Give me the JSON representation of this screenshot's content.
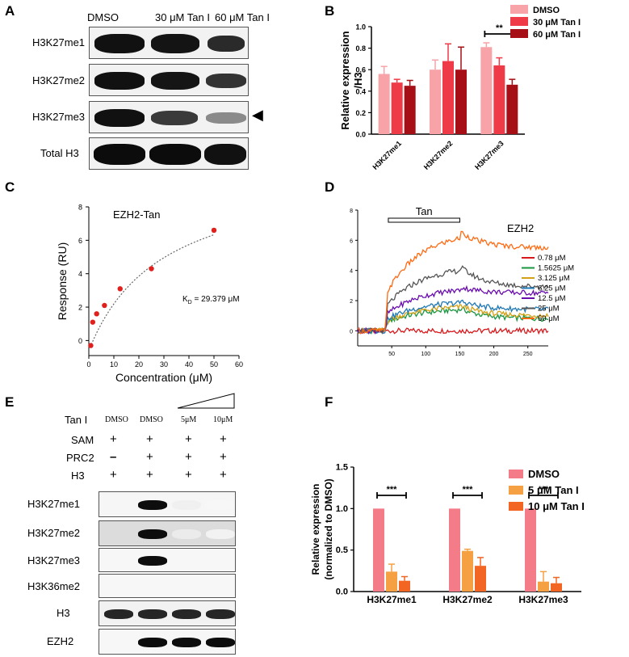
{
  "panel_labels": {
    "a": "A",
    "b": "B",
    "c": "C",
    "d": "D",
    "e": "E",
    "f": "F"
  },
  "panel_a": {
    "lanes": [
      "DMSO",
      "30 μM Tan I",
      "60 μM Tan I"
    ],
    "rows": [
      "H3K27me1",
      "H3K27me2",
      "H3K27me3",
      "Total H3"
    ],
    "arrow_glyph": "◀"
  },
  "panel_e": {
    "lanes": [
      "DMSO",
      "DMSO",
      "5μM",
      "10μM"
    ],
    "tan_label": "Tan I",
    "conditions": [
      {
        "label": "SAM",
        "marks": [
          "+",
          "+",
          "+",
          "+"
        ]
      },
      {
        "label": "PRC2",
        "marks": [
          "–",
          "+",
          "+",
          "+"
        ]
      },
      {
        "label": "H3",
        "marks": [
          "+",
          "+",
          "+",
          "+"
        ]
      }
    ],
    "rows": [
      "H3K27me1",
      "H3K27me2",
      "H3K27me3",
      "H3K36me2",
      "H3",
      "EZH2"
    ]
  },
  "chart_data": [
    {
      "id": "B",
      "type": "bar",
      "ylabel": "Relative expression /H3",
      "ylim": [
        0,
        1.0
      ],
      "yticks": [
        "0.0",
        "0.2",
        "0.4",
        "0.6",
        "0.8",
        "1.0"
      ],
      "categories": [
        "H3K27me1",
        "H3K27me2",
        "H3K27me3"
      ],
      "series": [
        {
          "name": "DMSO",
          "color": "#f7a3a8",
          "values": [
            0.56,
            0.6,
            0.81
          ],
          "err": [
            0.07,
            0.09,
            0.04
          ]
        },
        {
          "name": "30 μM Tan I",
          "color": "#ef3b47",
          "values": [
            0.48,
            0.68,
            0.64
          ],
          "err": [
            0.03,
            0.16,
            0.07
          ]
        },
        {
          "name": "60 μM Tan I",
          "color": "#a50f15",
          "values": [
            0.45,
            0.6,
            0.46
          ],
          "err": [
            0.05,
            0.21,
            0.05
          ]
        }
      ],
      "annotations": [
        {
          "text": "**",
          "category": "H3K27me3"
        }
      ],
      "legend": "top-right"
    },
    {
      "id": "C",
      "type": "scatter",
      "title": "EZH2-Tan",
      "xlabel": "Concentration (μM)",
      "ylabel": "Response (RU)",
      "xlim": [
        0,
        60
      ],
      "ylim": [
        0,
        8
      ],
      "xticks": [
        "0",
        "10",
        "20",
        "30",
        "40",
        "50",
        "60"
      ],
      "yticks": [
        "0",
        "2",
        "4",
        "6",
        "8"
      ],
      "points": [
        {
          "x": 0.78,
          "y": -0.3
        },
        {
          "x": 1.56,
          "y": 1.1
        },
        {
          "x": 3.125,
          "y": 1.6
        },
        {
          "x": 6.25,
          "y": 2.1
        },
        {
          "x": 12.5,
          "y": 3.1
        },
        {
          "x": 25,
          "y": 4.3
        },
        {
          "x": 50,
          "y": 6.6
        }
      ],
      "annotation_prefix": "K",
      "annotation_sub": "D",
      "annotation_suffix": " = 29.379 μM",
      "color": "#e0201c"
    },
    {
      "id": "D",
      "type": "line",
      "title": "EZH2",
      "bar_label": "Tan",
      "bar_range": [
        45,
        150
      ],
      "xlim": [
        0,
        280
      ],
      "ylim": [
        -1,
        8
      ],
      "xticks": [
        "50",
        "100",
        "150",
        "200",
        "250"
      ],
      "yticks": [
        "0",
        "2",
        "4",
        "6",
        "8"
      ],
      "series": [
        {
          "name": "0.78 μM",
          "color": "#d7191c",
          "plateau": 0.0,
          "final": 0.0
        },
        {
          "name": "1.5625 μM",
          "color": "#1a9641",
          "plateau": 1.5,
          "final": 0.8
        },
        {
          "name": "3.125 μM",
          "color": "#d4a017",
          "plateau": 1.7,
          "final": 1.0
        },
        {
          "name": "6.25 μM",
          "color": "#1f78b4",
          "plateau": 2.0,
          "final": 1.4
        },
        {
          "name": "12.5 μM",
          "color": "#6a0dad",
          "plateau": 2.9,
          "final": 2.5
        },
        {
          "name": "25 μM",
          "color": "#555555",
          "plateau": 4.3,
          "final": 2.9
        },
        {
          "name": "50 μM",
          "color": "#ff6a13",
          "plateau": 6.6,
          "final": 5.5
        }
      ]
    },
    {
      "id": "F",
      "type": "bar",
      "ylabel": "Relative expression (normalized to DMSO)",
      "ylim": [
        0,
        1.5
      ],
      "yticks": [
        "0.0",
        "0.5",
        "1.0",
        "1.5"
      ],
      "categories": [
        "H3K27me1",
        "H3K27me2",
        "H3K27me3"
      ],
      "series": [
        {
          "name": "DMSO",
          "color": "#f47c88",
          "values": [
            1.0,
            1.0,
            1.0
          ],
          "err": [
            0,
            0,
            0
          ]
        },
        {
          "name": "5 μM Tan I",
          "color": "#f6a044",
          "values": [
            0.24,
            0.49,
            0.12
          ],
          "err": [
            0.09,
            0.02,
            0.12
          ]
        },
        {
          "name": "10 μM Tan I",
          "color": "#f26522",
          "values": [
            0.13,
            0.31,
            0.1
          ],
          "err": [
            0.05,
            0.1,
            0.07
          ]
        }
      ],
      "annotations": [
        {
          "text": "***",
          "category": "H3K27me1"
        },
        {
          "text": "***",
          "category": "H3K27me2"
        },
        {
          "text": "***",
          "category": "H3K27me3"
        }
      ],
      "legend": "right"
    }
  ]
}
